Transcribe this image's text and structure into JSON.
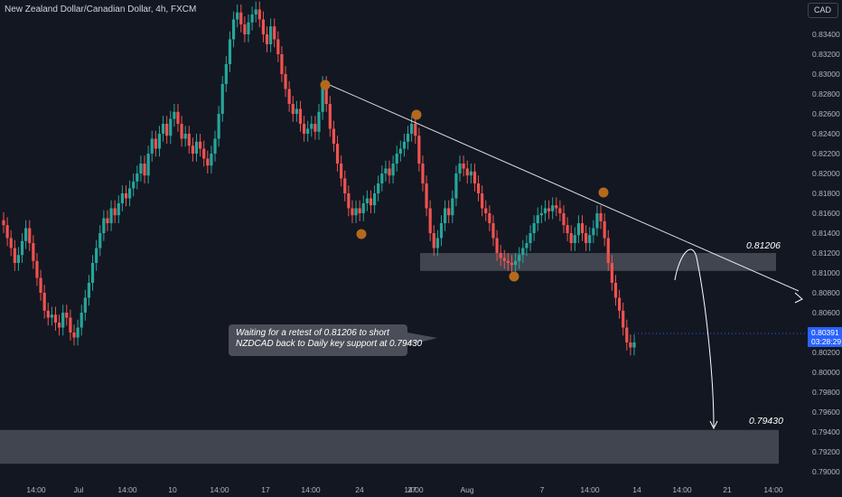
{
  "header": {
    "title": "New Zealand Dollar/Canadian Dollar, 4h, FXCM",
    "currency": "CAD"
  },
  "chart_data": {
    "type": "candlestick",
    "title": "New Zealand Dollar/Canadian Dollar, 4h, FXCM",
    "ylim": [
      0.7894,
      0.837
    ],
    "y_ticks": [
      "0.83400",
      "0.83200",
      "0.83000",
      "0.82800",
      "0.82600",
      "0.82400",
      "0.82200",
      "0.82000",
      "0.81800",
      "0.81600",
      "0.81400",
      "0.81200",
      "0.81000",
      "0.80800",
      "0.80600",
      "0.80400",
      "0.80200",
      "0.80000",
      "0.79800",
      "0.79600",
      "0.79400",
      "0.79200",
      "0.79000"
    ],
    "x_ticks": [
      "14:00",
      "Jul",
      "14:00",
      "10",
      "14:00",
      "17",
      "14:00",
      "24",
      "27",
      "14:00",
      "Aug",
      "7",
      "14:00",
      "14",
      "14:00",
      "21",
      "14:00"
    ],
    "close_series": [
      0.8148,
      0.8135,
      0.8125,
      0.811,
      0.8118,
      0.8132,
      0.8145,
      0.813,
      0.8112,
      0.8095,
      0.808,
      0.8062,
      0.8055,
      0.8058,
      0.805,
      0.8045,
      0.806,
      0.8055,
      0.804,
      0.8035,
      0.8045,
      0.806,
      0.8075,
      0.809,
      0.811,
      0.8125,
      0.814,
      0.8155,
      0.815,
      0.8165,
      0.8158,
      0.817,
      0.818,
      0.8175,
      0.8185,
      0.8192,
      0.82,
      0.821,
      0.8198,
      0.822,
      0.8235,
      0.8225,
      0.824,
      0.825,
      0.8238,
      0.8255,
      0.8262,
      0.825,
      0.8235,
      0.824,
      0.8228,
      0.822,
      0.8232,
      0.8225,
      0.8215,
      0.8208,
      0.822,
      0.8235,
      0.826,
      0.829,
      0.831,
      0.8335,
      0.8355,
      0.8362,
      0.835,
      0.834,
      0.8352,
      0.836,
      0.8365,
      0.8355,
      0.834,
      0.833,
      0.8348,
      0.8335,
      0.832,
      0.83,
      0.8285,
      0.827,
      0.826,
      0.8265,
      0.825,
      0.824,
      0.8245,
      0.825,
      0.8242,
      0.8262,
      0.829,
      0.827,
      0.8245,
      0.823,
      0.821,
      0.8195,
      0.818,
      0.8165,
      0.8158,
      0.8165,
      0.816,
      0.817,
      0.8175,
      0.8168,
      0.818,
      0.819,
      0.82,
      0.8205,
      0.8198,
      0.821,
      0.822,
      0.8225,
      0.8232,
      0.824,
      0.825,
      0.8238,
      0.821,
      0.819,
      0.8165,
      0.814,
      0.8125,
      0.8135,
      0.815,
      0.8165,
      0.8158,
      0.8175,
      0.82,
      0.821,
      0.8205,
      0.8198,
      0.8202,
      0.819,
      0.818,
      0.8165,
      0.816,
      0.815,
      0.8135,
      0.812,
      0.8115,
      0.8112,
      0.811,
      0.8108,
      0.8112,
      0.8118,
      0.8125,
      0.813,
      0.814,
      0.815,
      0.8158,
      0.816,
      0.8165,
      0.8162,
      0.8168,
      0.8165,
      0.816,
      0.8148,
      0.814,
      0.813,
      0.8138,
      0.815,
      0.814,
      0.813,
      0.8138,
      0.8145,
      0.816,
      0.8152,
      0.8135,
      0.811,
      0.809,
      0.8075,
      0.8062,
      0.8045,
      0.803,
      0.8025,
      0.803
    ],
    "annotations": {
      "resistance_trendline": {
        "x": [
          "24 Jul",
          "16 Aug"
        ],
        "y": [
          0.8291,
          0.8085
        ]
      },
      "retest_level": {
        "value": 0.81206,
        "label": "0.81206",
        "zone": [
          0.8102,
          0.812
        ]
      },
      "support_level": {
        "value": 0.7943,
        "label": "0.79430",
        "zone": [
          0.7908,
          0.7942
        ]
      },
      "callout": [
        "Waiting for a retest of 0.81206 to short",
        "NZDCAD back to Daily key support at 0.79430"
      ]
    },
    "last_price": {
      "value": "0.80391",
      "countdown": "03:28:29"
    },
    "colors": {
      "background": "#131722",
      "up": "#26a69a",
      "down": "#ef5350",
      "zone": "#4a4d57",
      "marker": "#b4691c",
      "price_tag": "#2962ff",
      "line": "#ffffff"
    }
  }
}
